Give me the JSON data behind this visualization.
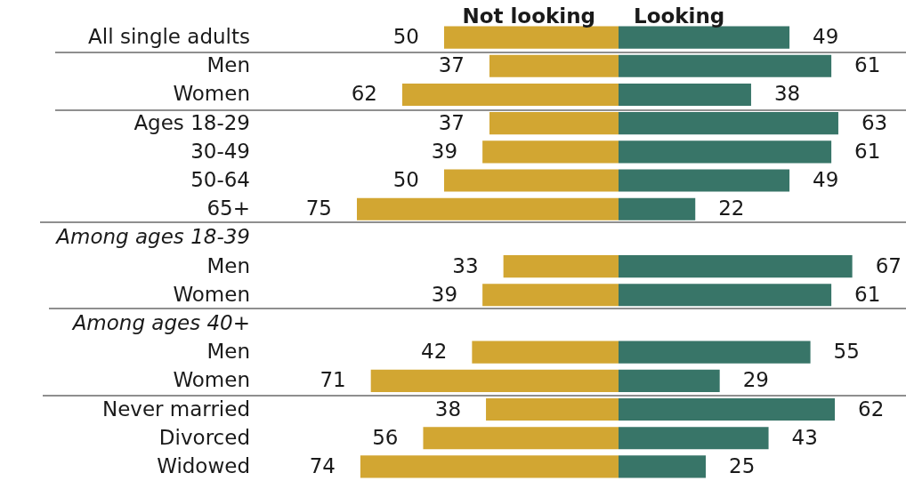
{
  "chart_data": [
    {
      "type": "bar",
      "orientation": "horizontal",
      "title": "Not looking",
      "tick_labels": "y",
      "data_labels": true,
      "color": "#d2a632",
      "categories": [
        "All single adults",
        "Men",
        "Women",
        "Ages 18-29",
        "30-49",
        "50-64",
        "65+",
        "Among ages 18-39",
        "Men",
        "Women",
        "Among ages 40+",
        "Men",
        "Women",
        "Never married",
        "Divorced",
        "Widowed"
      ],
      "values": [
        50,
        37,
        62,
        37,
        39,
        50,
        75,
        null,
        33,
        39,
        null,
        42,
        71,
        38,
        56,
        74
      ]
    },
    {
      "type": "bar",
      "orientation": "horizontal",
      "title": "Looking",
      "tick_labels": false,
      "data_labels": true,
      "color": "#387568",
      "categories": [
        null,
        null,
        null,
        null,
        null,
        null,
        null,
        null,
        null,
        null,
        null,
        null,
        null,
        null,
        null,
        null
      ],
      "values": [
        49,
        61,
        38,
        63,
        61,
        49,
        22,
        null,
        67,
        61,
        null,
        55,
        29,
        62,
        43,
        25
      ]
    }
  ]
}
